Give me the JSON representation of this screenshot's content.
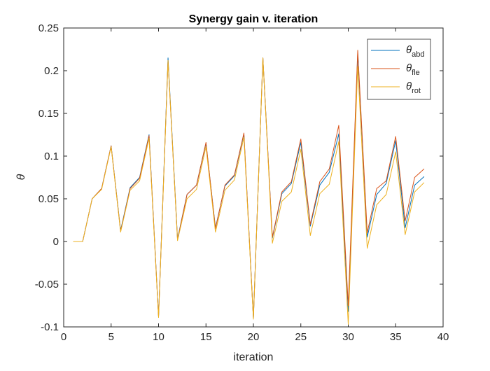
{
  "chart_data": {
    "type": "line",
    "title": "Synergy gain v. iteration",
    "xlabel": "iteration",
    "ylabel": "θ",
    "xlim": [
      0,
      40
    ],
    "ylim": [
      -0.1,
      0.25
    ],
    "xticks": [
      0,
      5,
      10,
      15,
      20,
      25,
      30,
      35,
      40
    ],
    "yticks": [
      -0.1,
      -0.05,
      0,
      0.05,
      0.1,
      0.15,
      0.2,
      0.25
    ],
    "xtick_labels": [
      "0",
      "5",
      "10",
      "15",
      "20",
      "25",
      "30",
      "35",
      "40"
    ],
    "ytick_labels": [
      "-0.1",
      "-0.05",
      "0",
      "0.05",
      "0.1",
      "0.15",
      "0.2",
      "0.25"
    ],
    "grid": false,
    "legend_position": "top-right",
    "x": [
      1,
      2,
      3,
      4,
      5,
      6,
      7,
      8,
      9,
      10,
      11,
      12,
      13,
      14,
      15,
      16,
      17,
      18,
      19,
      20,
      21,
      22,
      23,
      24,
      25,
      26,
      27,
      28,
      29,
      30,
      31,
      32,
      33,
      34,
      35,
      36,
      37,
      38
    ],
    "series": [
      {
        "name": "θ",
        "subscript": "abd",
        "color": "#0072BD",
        "values": [
          0,
          0,
          0.05,
          0.062,
          0.112,
          0.013,
          0.063,
          0.075,
          0.125,
          -0.088,
          0.215,
          0.003,
          0.055,
          0.066,
          0.115,
          0.016,
          0.065,
          0.077,
          0.126,
          -0.09,
          0.215,
          0.004,
          0.056,
          0.068,
          0.116,
          0.018,
          0.066,
          0.081,
          0.126,
          -0.082,
          0.22,
          0.005,
          0.055,
          0.068,
          0.118,
          0.016,
          0.066,
          0.076
        ]
      },
      {
        "name": "θ",
        "subscript": "fle",
        "color": "#D95319",
        "values": [
          0,
          0,
          0.05,
          0.062,
          0.112,
          0.012,
          0.062,
          0.074,
          0.124,
          -0.088,
          0.212,
          0.002,
          0.055,
          0.066,
          0.116,
          0.015,
          0.066,
          0.078,
          0.127,
          -0.09,
          0.215,
          0.005,
          0.058,
          0.07,
          0.12,
          0.02,
          0.07,
          0.085,
          0.136,
          -0.075,
          0.224,
          0.01,
          0.062,
          0.071,
          0.123,
          0.024,
          0.075,
          0.085
        ]
      },
      {
        "name": "θ",
        "subscript": "rot",
        "color": "#EDB120",
        "values": [
          0,
          0,
          0.05,
          0.061,
          0.111,
          0.011,
          0.06,
          0.071,
          0.121,
          -0.089,
          0.212,
          0.001,
          0.05,
          0.061,
          0.111,
          0.011,
          0.06,
          0.072,
          0.122,
          -0.091,
          0.215,
          -0.002,
          0.047,
          0.058,
          0.108,
          0.007,
          0.056,
          0.067,
          0.117,
          -0.097,
          0.205,
          -0.008,
          0.043,
          0.055,
          0.105,
          0.008,
          0.058,
          0.069
        ]
      }
    ]
  }
}
